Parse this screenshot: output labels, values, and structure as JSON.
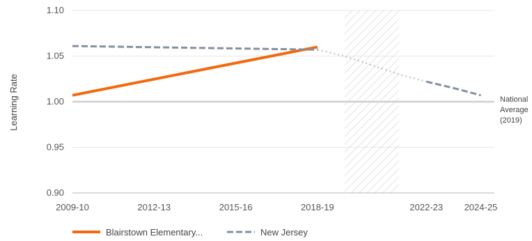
{
  "chart_data": {
    "type": "line",
    "ylabel": "Learning Rate",
    "xlabel": "",
    "ylim": [
      0.9,
      1.1
    ],
    "yticks": [
      "0.90",
      "0.95",
      "1.00",
      "1.05",
      "1.10"
    ],
    "xticks": [
      {
        "year": 2009,
        "label": "2009-10"
      },
      {
        "year": 2012,
        "label": "2012-13"
      },
      {
        "year": 2015,
        "label": "2015-16"
      },
      {
        "year": 2018,
        "label": "2018-19"
      },
      {
        "year": 2022,
        "label": "2022-23"
      },
      {
        "year": 2024,
        "label": "2024-25"
      }
    ],
    "reference_line": {
      "value": 1.0,
      "label_lines": [
        "National",
        "Average",
        "(2019)"
      ]
    },
    "hatched_period": {
      "from_year": 2019,
      "to_year": 2021
    },
    "series": [
      {
        "name": "Blairstown Elementary...",
        "color": "#f26a10",
        "style": "solid",
        "points": [
          [
            2009,
            1.007
          ],
          [
            2018,
            1.06
          ]
        ]
      },
      {
        "name": "New Jersey",
        "color": "#8490a0",
        "style": "dashed",
        "points": [
          [
            2009,
            1.061
          ],
          [
            2018,
            1.057
          ]
        ]
      },
      {
        "name": "",
        "color": "#c4c8ce",
        "style": "dotted",
        "points": [
          [
            2018,
            1.057
          ],
          [
            2019,
            1.05
          ],
          [
            2020,
            1.04
          ],
          [
            2021,
            1.03
          ],
          [
            2022,
            1.022
          ]
        ]
      },
      {
        "name": "",
        "color": "#8490a0",
        "style": "dashed",
        "points": [
          [
            2022,
            1.022
          ],
          [
            2023,
            1.015
          ],
          [
            2024,
            1.007
          ]
        ]
      }
    ],
    "grid": true,
    "legend": "bottom-left"
  }
}
